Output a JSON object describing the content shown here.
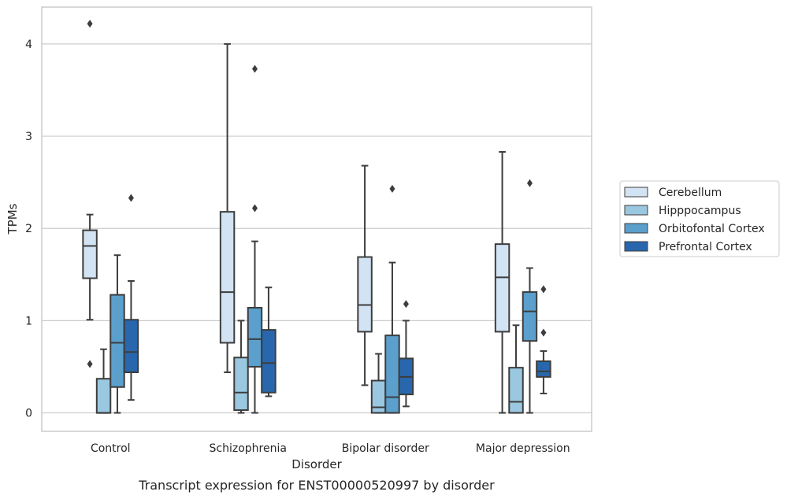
{
  "chart_data": {
    "type": "box",
    "title": "",
    "caption": "Transcript expression for ENST00000520997 by disorder",
    "xlabel": "Disorder",
    "ylabel": "TPMs",
    "ylim": [
      -0.2,
      4.4
    ],
    "yticks": [
      0,
      1,
      2,
      3,
      4
    ],
    "grid": "horizontal",
    "legend_position": "right",
    "categories": [
      "Control",
      "Schizophrenia",
      "Bipolar disorder",
      "Major depression"
    ],
    "series": [
      {
        "name": "Cerebellum",
        "color": "#d2e3f3",
        "boxes": [
          {
            "whislo": 1.01,
            "q1": 1.46,
            "med": 1.81,
            "q3": 1.98,
            "whishi": 2.15,
            "fliers": [
              0.53,
              4.22
            ]
          },
          {
            "whislo": 0.44,
            "q1": 0.76,
            "med": 1.31,
            "q3": 2.18,
            "whishi": 4.0,
            "fliers": []
          },
          {
            "whislo": 0.3,
            "q1": 0.88,
            "med": 1.17,
            "q3": 1.69,
            "whishi": 2.68,
            "fliers": []
          },
          {
            "whislo": 0.0,
            "q1": 0.88,
            "med": 1.47,
            "q3": 1.83,
            "whishi": 2.83,
            "fliers": []
          }
        ]
      },
      {
        "name": "Hipppocampus",
        "color": "#9ac8e0",
        "boxes": [
          {
            "whislo": 0.0,
            "q1": 0.0,
            "med": 0.0,
            "q3": 0.37,
            "whishi": 0.69,
            "fliers": []
          },
          {
            "whislo": 0.0,
            "q1": 0.03,
            "med": 0.22,
            "q3": 0.6,
            "whishi": 1.0,
            "fliers": []
          },
          {
            "whislo": 0.0,
            "q1": 0.0,
            "med": 0.06,
            "q3": 0.35,
            "whishi": 0.64,
            "fliers": []
          },
          {
            "whislo": 0.0,
            "q1": 0.0,
            "med": 0.12,
            "q3": 0.49,
            "whishi": 0.95,
            "fliers": []
          }
        ]
      },
      {
        "name": "Orbitofontal Cortex",
        "color": "#5b9fcc",
        "boxes": [
          {
            "whislo": 0.0,
            "q1": 0.28,
            "med": 0.76,
            "q3": 1.28,
            "whishi": 1.71,
            "fliers": []
          },
          {
            "whislo": 0.0,
            "q1": 0.5,
            "med": 0.8,
            "q3": 1.14,
            "whishi": 1.86,
            "fliers": [
              2.22,
              3.73
            ]
          },
          {
            "whislo": 0.0,
            "q1": 0.0,
            "med": 0.17,
            "q3": 0.84,
            "whishi": 1.63,
            "fliers": [
              2.43
            ]
          },
          {
            "whislo": 0.0,
            "q1": 0.78,
            "med": 1.1,
            "q3": 1.31,
            "whishi": 1.57,
            "fliers": [
              2.49
            ]
          }
        ]
      },
      {
        "name": "Prefrontal Cortex",
        "color": "#2867ad",
        "boxes": [
          {
            "whislo": 0.14,
            "q1": 0.44,
            "med": 0.66,
            "q3": 1.01,
            "whishi": 1.43,
            "fliers": [
              2.33
            ]
          },
          {
            "whislo": 0.18,
            "q1": 0.22,
            "med": 0.54,
            "q3": 0.9,
            "whishi": 1.36,
            "fliers": []
          },
          {
            "whislo": 0.07,
            "q1": 0.2,
            "med": 0.39,
            "q3": 0.59,
            "whishi": 1.0,
            "fliers": [
              1.18
            ]
          },
          {
            "whislo": 0.21,
            "q1": 0.39,
            "med": 0.45,
            "q3": 0.56,
            "whishi": 0.67,
            "fliers": [
              0.87,
              1.34
            ]
          }
        ]
      }
    ]
  },
  "colors": {
    "edge": "#3d3d3d",
    "grid": "#cccccc",
    "frame": "#cccccc"
  }
}
